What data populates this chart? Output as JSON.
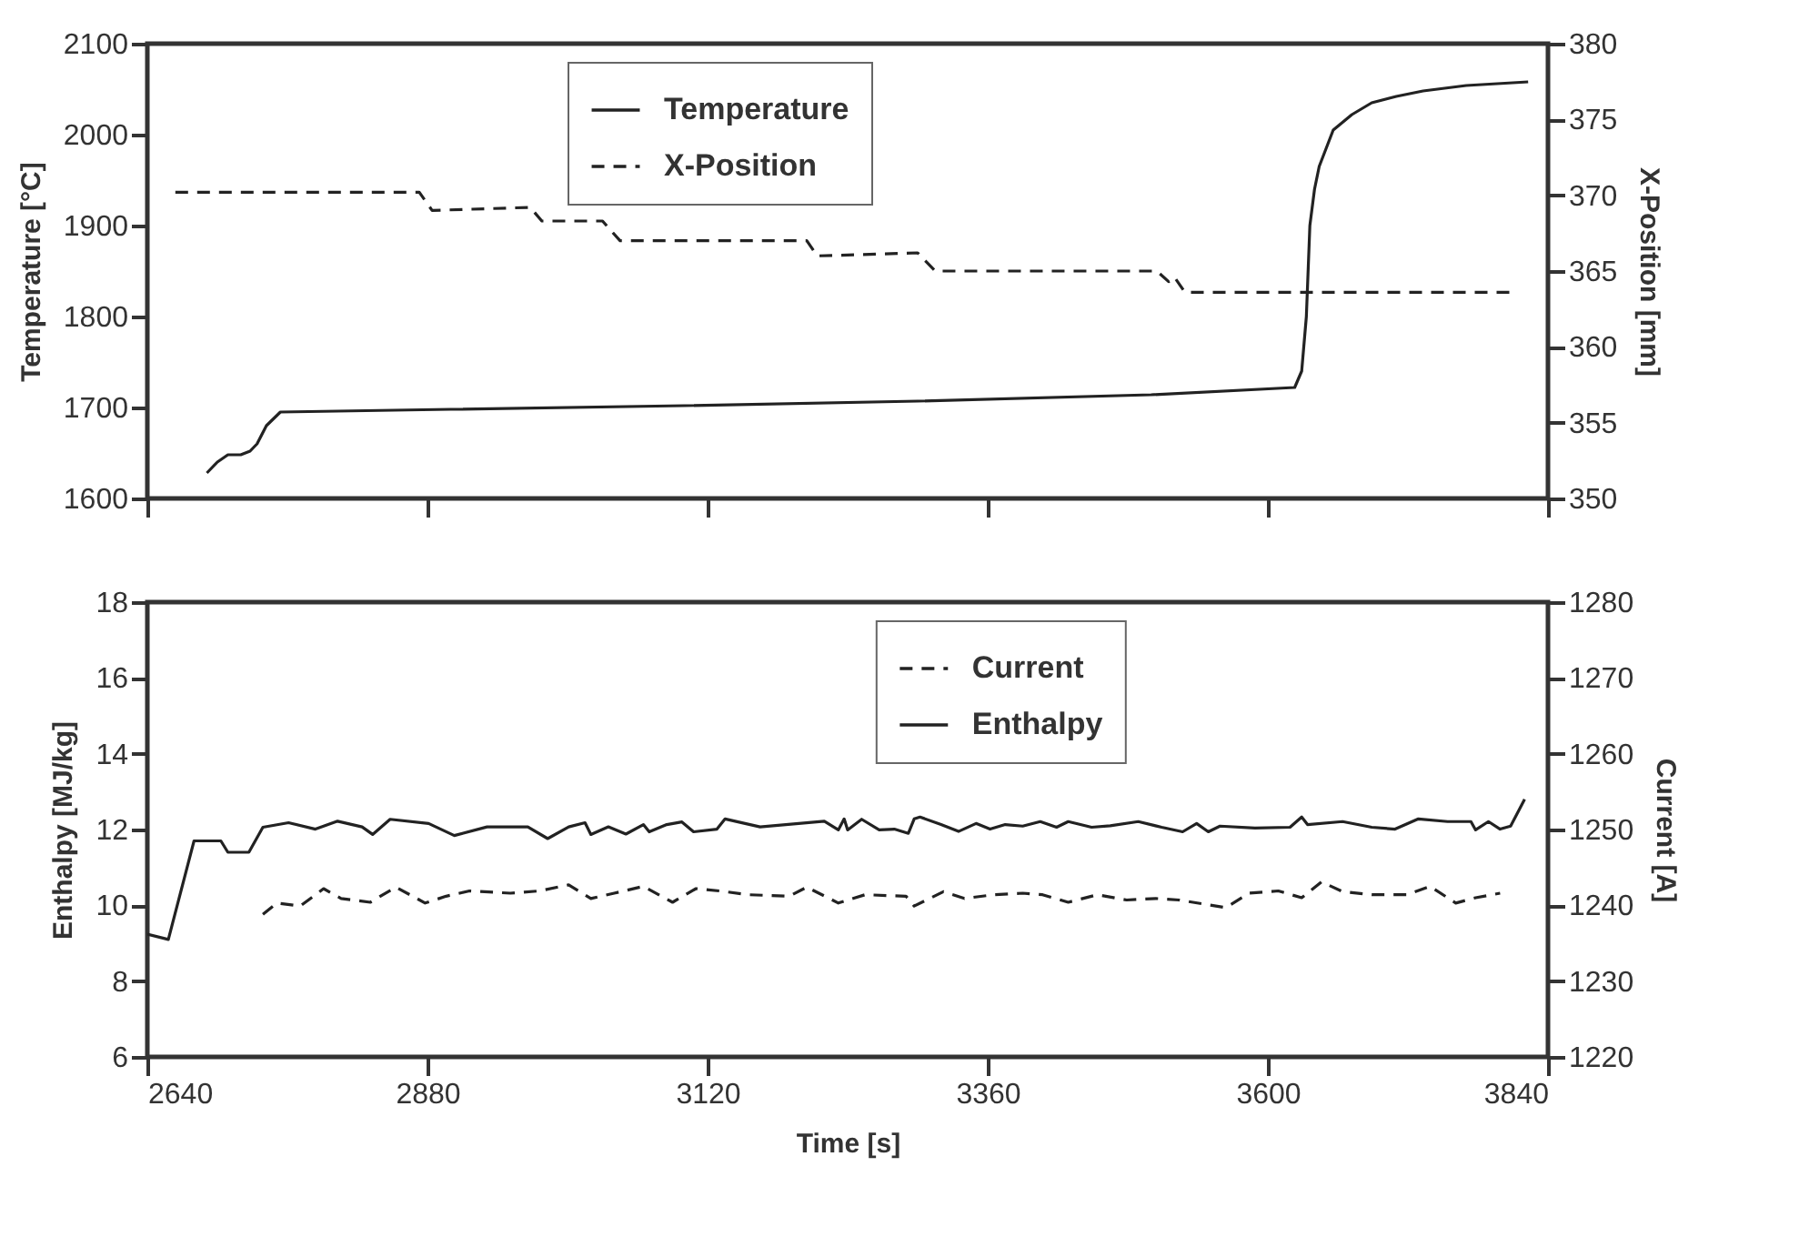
{
  "chart_data": [
    {
      "type": "line",
      "ylabel": "Temperature [°C]",
      "y2label": "X-Position [mm]",
      "xlim": [
        2640,
        3840
      ],
      "xticks": [
        2640,
        2880,
        3120,
        3360,
        3600,
        3840
      ],
      "ylim": [
        1600,
        2100
      ],
      "yticks": [
        1600,
        1700,
        1800,
        1900,
        2000,
        2100
      ],
      "y2lim": [
        350,
        380
      ],
      "y2ticks": [
        350,
        355,
        360,
        365,
        370,
        375,
        380
      ],
      "tick_labels": "y",
      "legend": "top",
      "grid": false,
      "series": [
        {
          "name": "Temperature",
          "color": "#222222",
          "line_style": "solid",
          "x": [
            2691,
            2700,
            2709,
            2720,
            2728,
            2734,
            2742,
            2754,
            2900,
            3100,
            3300,
            3500,
            3623,
            3629,
            3633,
            3636,
            3640,
            3644,
            3656,
            3672,
            3689,
            3710,
            3733,
            3770,
            3823
          ],
          "values": [
            1628,
            1640,
            1648,
            1648,
            1652,
            1660,
            1680,
            1695,
            1698,
            1702,
            1707,
            1714,
            1722,
            1740,
            1800,
            1900,
            1940,
            1965,
            2005,
            2022,
            2035,
            2042,
            2048,
            2054,
            2058
          ]
        },
        {
          "name": "X-Position",
          "color": "#222222",
          "line_style": "dashed",
          "axis": "y2",
          "x": [
            2664,
            2873,
            2884,
            2968,
            2978,
            3030,
            3045,
            3205,
            3214,
            3300,
            3315,
            3505,
            3515,
            3520,
            3529,
            3808
          ],
          "values": [
            370.2,
            370.2,
            369.0,
            369.2,
            368.3,
            368.3,
            367.0,
            367.0,
            366.0,
            366.2,
            365.0,
            365.0,
            364.3,
            364.6,
            363.6,
            363.6
          ]
        }
      ]
    },
    {
      "type": "line",
      "xlabel": "Time [s]",
      "ylabel": "Enthalpy [MJ/kg]",
      "y2label": "Current [A]",
      "xlim": [
        2640,
        3840
      ],
      "xticks": [
        2640,
        2880,
        3120,
        3360,
        3600,
        3840
      ],
      "ylim": [
        6,
        18
      ],
      "yticks": [
        6,
        8,
        10,
        12,
        14,
        16,
        18
      ],
      "y2lim": [
        1220,
        1280
      ],
      "y2ticks": [
        1220,
        1230,
        1240,
        1250,
        1260,
        1270,
        1280
      ],
      "legend": "top right",
      "grid": false,
      "series": [
        {
          "name": "Current",
          "color": "#222222",
          "line_style": "dashed",
          "axis": "y2",
          "x": [
            2739,
            2751,
            2771,
            2791,
            2806,
            2831,
            2853,
            2878,
            2896,
            2916,
            2951,
            2976,
            3001,
            3020,
            3040,
            3065,
            3090,
            3110,
            3130,
            3155,
            3190,
            3205,
            3232,
            3255,
            3290,
            3297,
            3322,
            3340,
            3365,
            3390,
            3407,
            3429,
            3454,
            3479,
            3504,
            3524,
            3544,
            3564,
            3584,
            3609,
            3629,
            3646,
            3664,
            3689,
            3719,
            3739,
            3761,
            3778,
            3799
          ],
          "values": [
            1238.8,
            1240.3,
            1239.9,
            1242.2,
            1240.9,
            1240.4,
            1242.4,
            1240.3,
            1241.2,
            1241.9,
            1241.6,
            1241.9,
            1242.7,
            1240.9,
            1241.6,
            1242.5,
            1240.4,
            1242.2,
            1241.9,
            1241.4,
            1241.2,
            1242.4,
            1240.3,
            1241.4,
            1241.2,
            1239.9,
            1241.8,
            1240.9,
            1241.4,
            1241.6,
            1241.4,
            1240.4,
            1241.4,
            1240.7,
            1240.9,
            1240.7,
            1240.2,
            1239.7,
            1241.6,
            1241.9,
            1241.0,
            1243.1,
            1241.8,
            1241.4,
            1241.4,
            1242.5,
            1240.3,
            1241.0,
            1241.6
          ]
        },
        {
          "name": "Enthalpy",
          "color": "#222222",
          "line_style": "solid",
          "x": [
            2640,
            2658,
            2680,
            2703,
            2709,
            2727,
            2739,
            2761,
            2784,
            2803,
            2824,
            2833,
            2848,
            2881,
            2903,
            2931,
            2966,
            2983,
            3001,
            3015,
            3020,
            3035,
            3050,
            3065,
            3070,
            3085,
            3098,
            3108,
            3128,
            3135,
            3165,
            3220,
            3232,
            3237,
            3240,
            3252,
            3267,
            3280,
            3292,
            3297,
            3302,
            3320,
            3335,
            3350,
            3362,
            3375,
            3390,
            3405,
            3419,
            3429,
            3449,
            3465,
            3489,
            3509,
            3527,
            3539,
            3549,
            3559,
            3589,
            3619,
            3629,
            3634,
            3664,
            3689,
            3709,
            3729,
            3754,
            3774,
            3778,
            3789,
            3799,
            3808,
            3820
          ],
          "values": [
            9.24,
            9.1,
            11.7,
            11.7,
            11.4,
            11.4,
            12.06,
            12.18,
            12.01,
            12.22,
            12.07,
            11.87,
            12.27,
            12.16,
            11.84,
            12.07,
            12.07,
            11.76,
            12.07,
            12.18,
            11.87,
            12.07,
            11.88,
            12.13,
            11.94,
            12.13,
            12.2,
            11.94,
            12.01,
            12.28,
            12.07,
            12.22,
            11.99,
            12.28,
            11.99,
            12.27,
            11.99,
            12.01,
            11.9,
            12.28,
            12.33,
            12.13,
            11.95,
            12.16,
            12.01,
            12.13,
            12.09,
            12.21,
            12.06,
            12.21,
            12.06,
            12.1,
            12.21,
            12.06,
            11.94,
            12.16,
            11.94,
            12.09,
            12.04,
            12.06,
            12.33,
            12.13,
            12.21,
            12.06,
            12.01,
            12.28,
            12.21,
            12.21,
            11.99,
            12.21,
            12.01,
            12.09,
            12.8
          ]
        }
      ]
    }
  ]
}
